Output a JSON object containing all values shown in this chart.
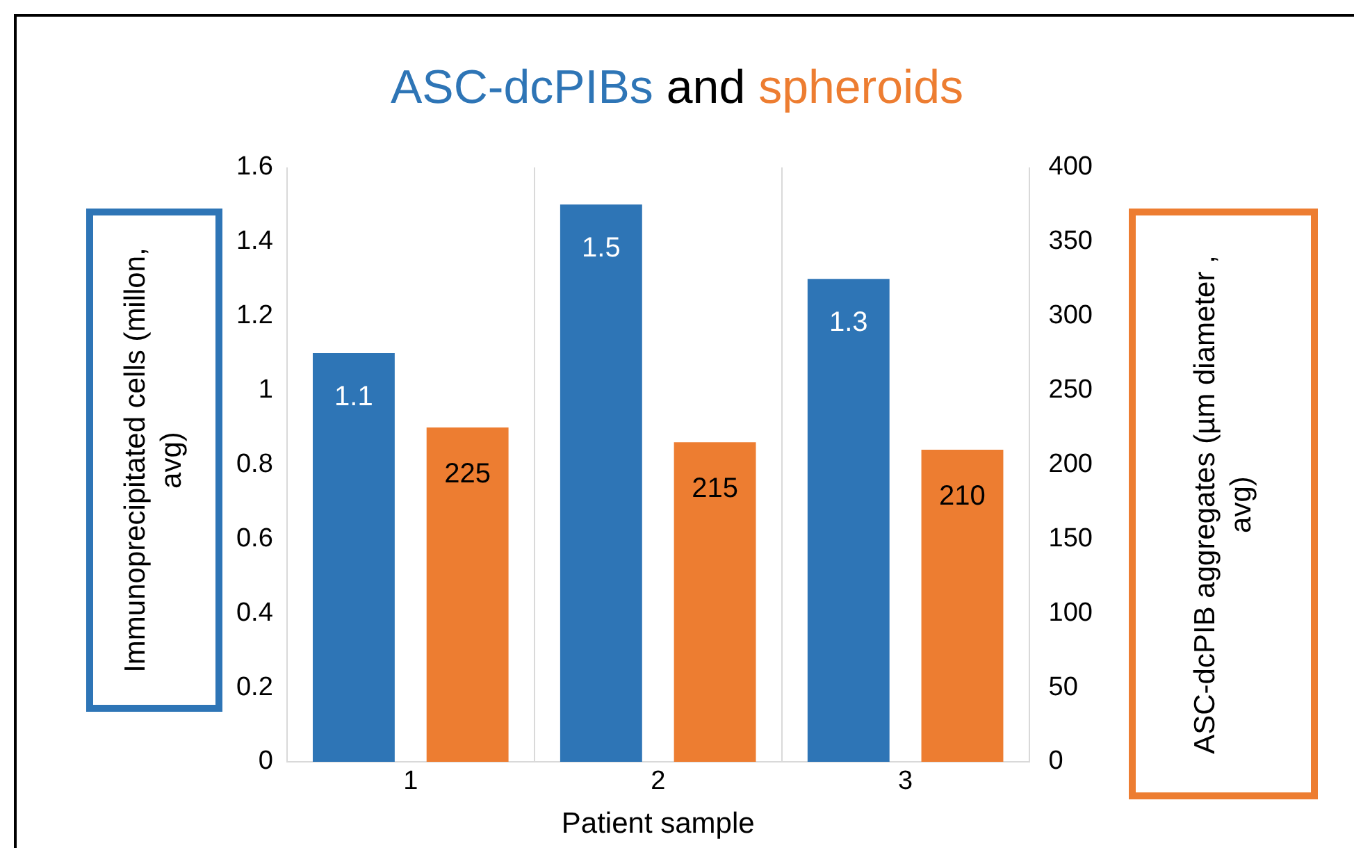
{
  "chart_data": {
    "type": "bar",
    "title": "ASC-dcPIBs and spheroids",
    "xlabel": "Patient sample",
    "ylabel": "Immunoprecipitated cells (millon, avg)",
    "y2label": "ASC-dcPIB aggregates (µm diameter , avg)",
    "categories": [
      "1",
      "2",
      "3"
    ],
    "series": [
      {
        "color": "#2e75b6",
        "values": [
          1.1,
          1.5,
          1.3
        ]
      },
      {
        "color": "#ed7d31",
        "values": [
          225,
          215,
          210
        ],
        "axis": "y2"
      }
    ],
    "ylim": [
      0,
      1.6
    ],
    "yticks": [
      0,
      0.2,
      0.4,
      0.6,
      0.8,
      1,
      1.2,
      1.4,
      1.6
    ],
    "y2lim": [
      0,
      400
    ],
    "y2ticks": [
      0,
      50,
      100,
      150,
      200,
      250,
      300,
      350,
      400
    ],
    "data_labels": true,
    "grid": "x",
    "legend": false
  }
}
